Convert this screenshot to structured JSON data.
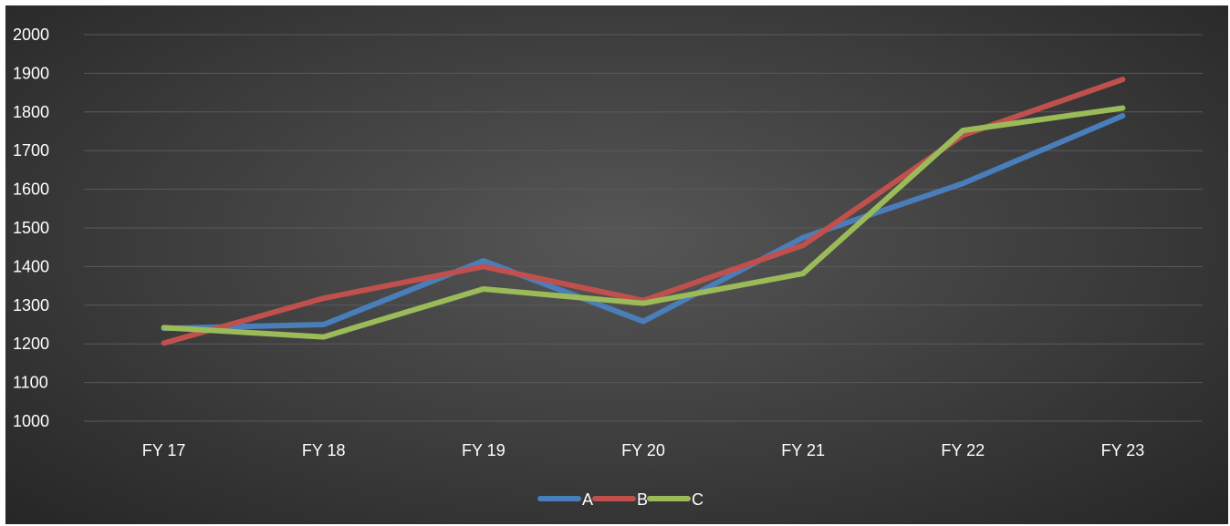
{
  "chart_data": {
    "type": "line",
    "title": "",
    "xlabel": "",
    "ylabel": "",
    "categories": [
      "FY 17",
      "FY 18",
      "FY 19",
      "FY 20",
      "FY 21",
      "FY 22",
      "FY 23"
    ],
    "ylim": [
      1000,
      2000
    ],
    "yticks": [
      1000,
      1100,
      1200,
      1300,
      1400,
      1500,
      1600,
      1700,
      1800,
      1900,
      2000
    ],
    "grid": true,
    "legend_position": "bottom",
    "series": [
      {
        "name": "A",
        "color": "#4a7ebb",
        "values": [
          1240,
          1250,
          1415,
          1258,
          1475,
          1615,
          1790
        ]
      },
      {
        "name": "B",
        "color": "#c0504d",
        "values": [
          1202,
          1318,
          1400,
          1312,
          1455,
          1740,
          1884
        ]
      },
      {
        "name": "C",
        "color": "#9bbb59",
        "values": [
          1242,
          1218,
          1342,
          1305,
          1382,
          1752,
          1810
        ]
      }
    ]
  }
}
